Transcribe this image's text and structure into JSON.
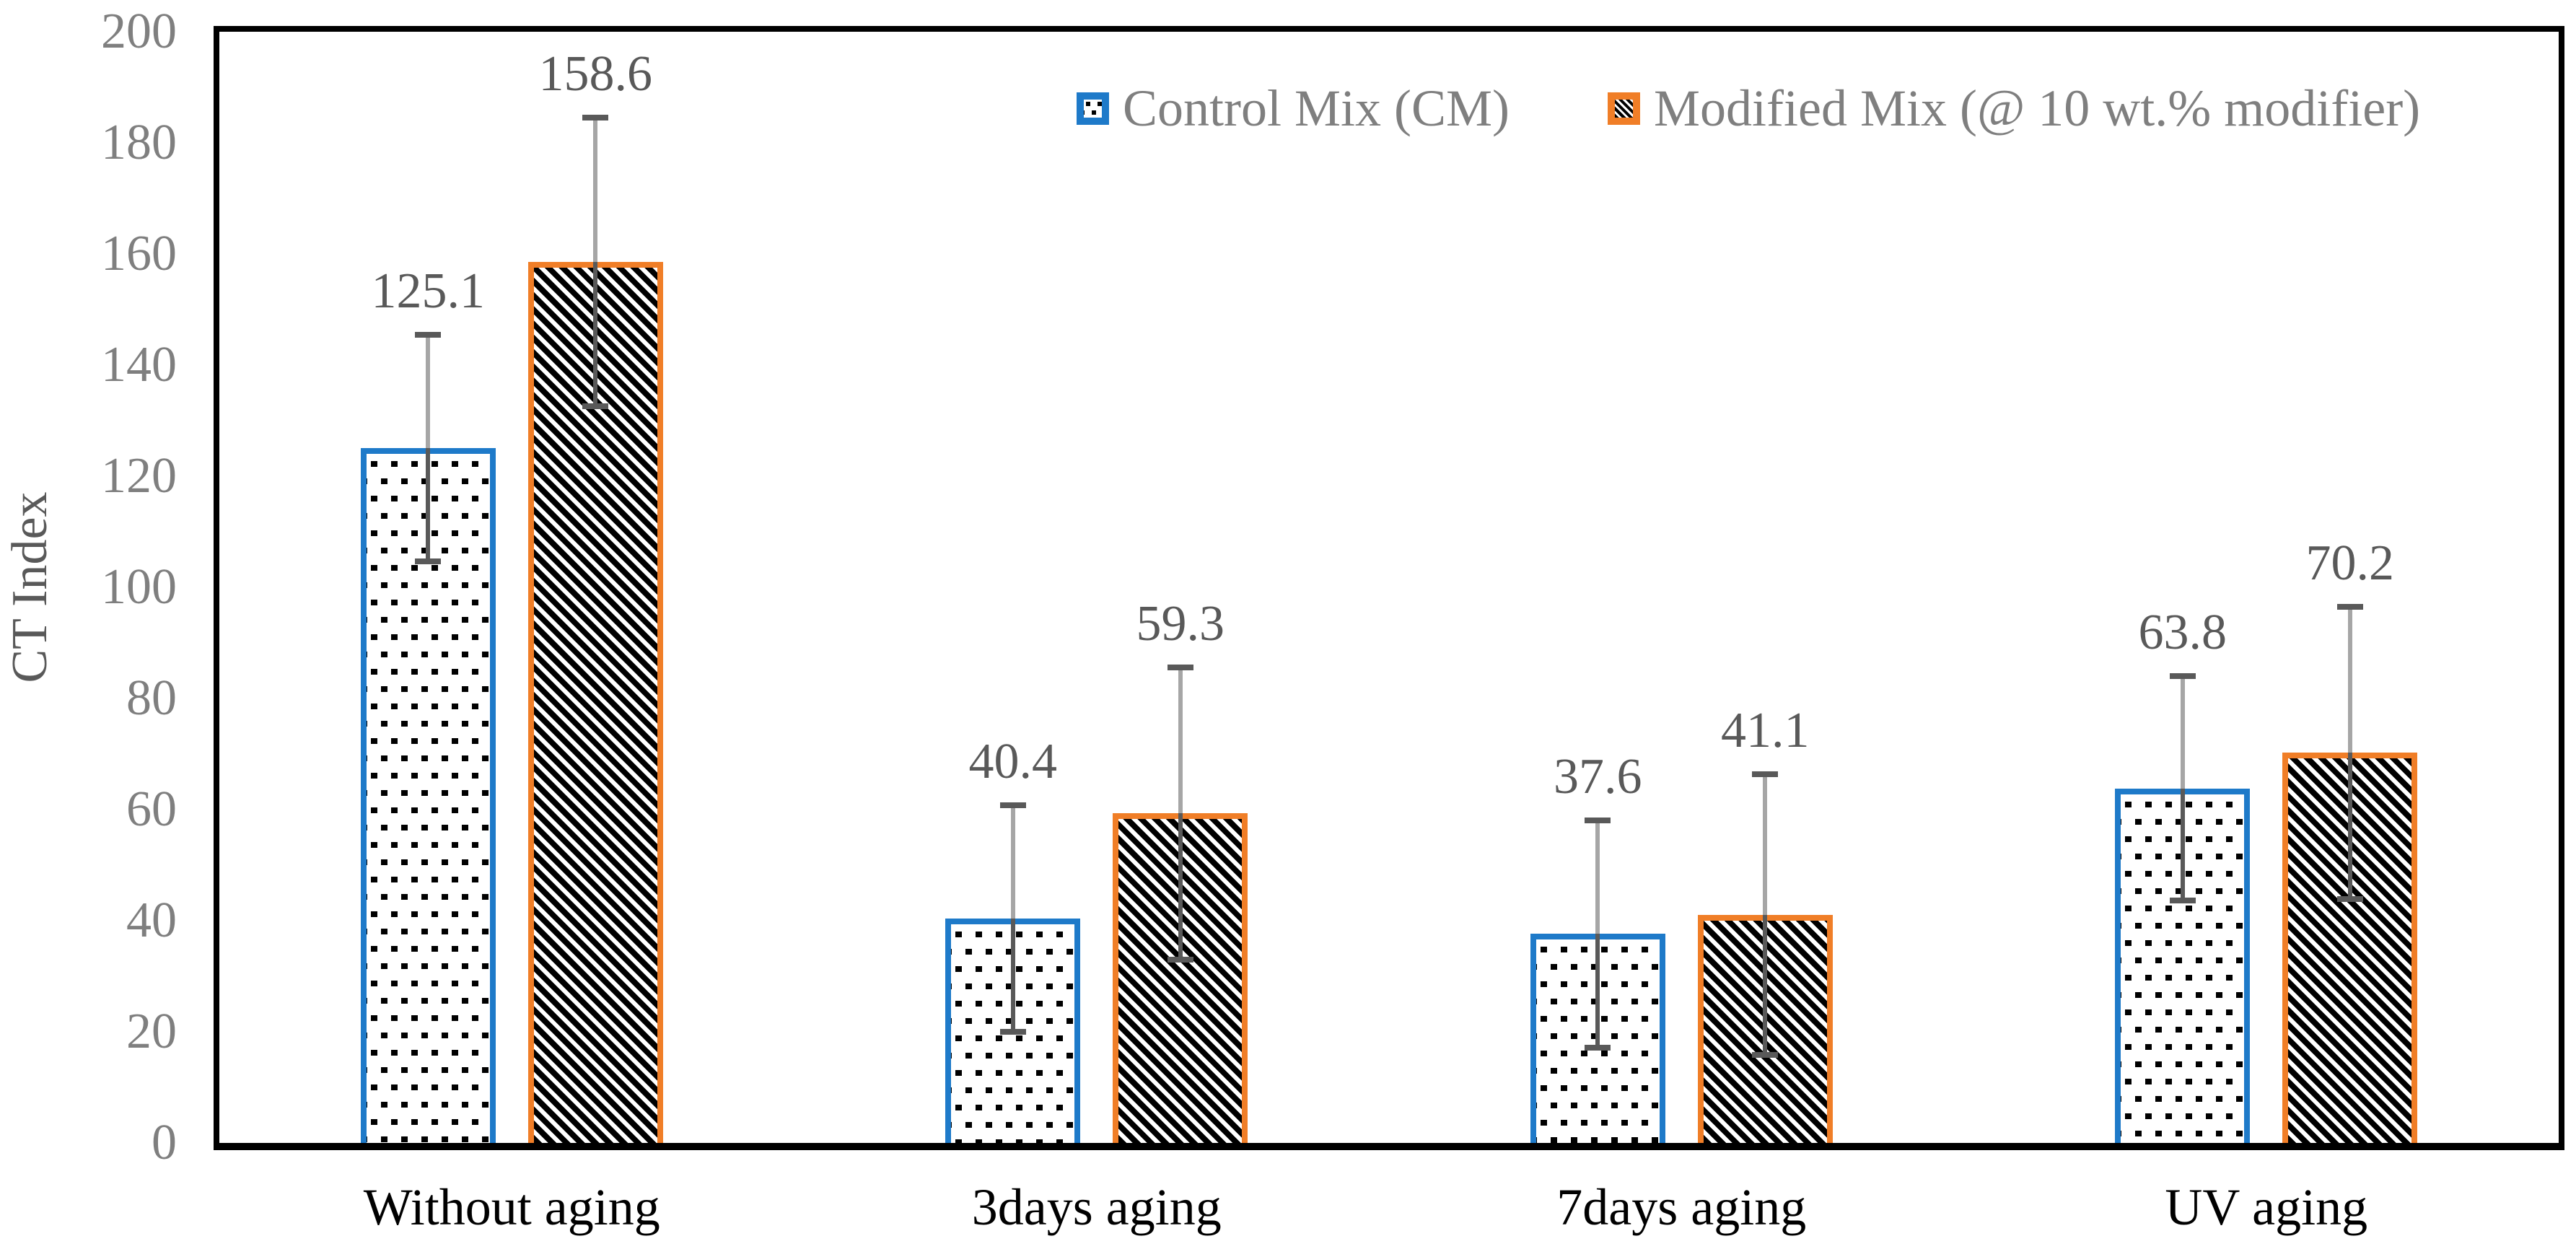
{
  "colors": {
    "control_border_blue": "#1E7AC9",
    "modified_border_orange": "#F07E27",
    "error_bar_light": "#A6A6A6",
    "error_bar_dark": "#595959",
    "tick_label_gray": "#7F7F7F",
    "data_label_gray": "#595959",
    "axis_black": "#000000",
    "background": "#FFFFFF"
  },
  "chart_data": {
    "type": "bar",
    "title": "",
    "xlabel": "",
    "ylabel": "CT Index",
    "ylim": [
      0,
      200
    ],
    "yticks": [
      0,
      20,
      40,
      60,
      80,
      100,
      120,
      140,
      160,
      180,
      200
    ],
    "grid": false,
    "legend_position": "top-inside-right",
    "categories": [
      "Without aging",
      "3days aging",
      "7days aging",
      "UV aging"
    ],
    "series": [
      {
        "name": "Control Mix (CM)",
        "pattern": "dots",
        "border_color": "#1E7AC9",
        "values": [
          125.1,
          40.4,
          37.6,
          63.8
        ],
        "data_labels": [
          "125.1",
          "40.4",
          "37.6",
          "63.8"
        ],
        "errors": [
          20.4,
          20.4,
          20.4,
          20.2
        ]
      },
      {
        "name": "Modified Mix (@ 10 wt.% modifier)",
        "pattern": "diagonal",
        "border_color": "#F07E27",
        "values": [
          158.6,
          59.3,
          41.1,
          70.2
        ],
        "data_labels": [
          "158.6",
          "59.3",
          "41.1",
          "70.2"
        ],
        "errors": [
          26.0,
          26.3,
          25.3,
          26.3
        ]
      }
    ]
  }
}
